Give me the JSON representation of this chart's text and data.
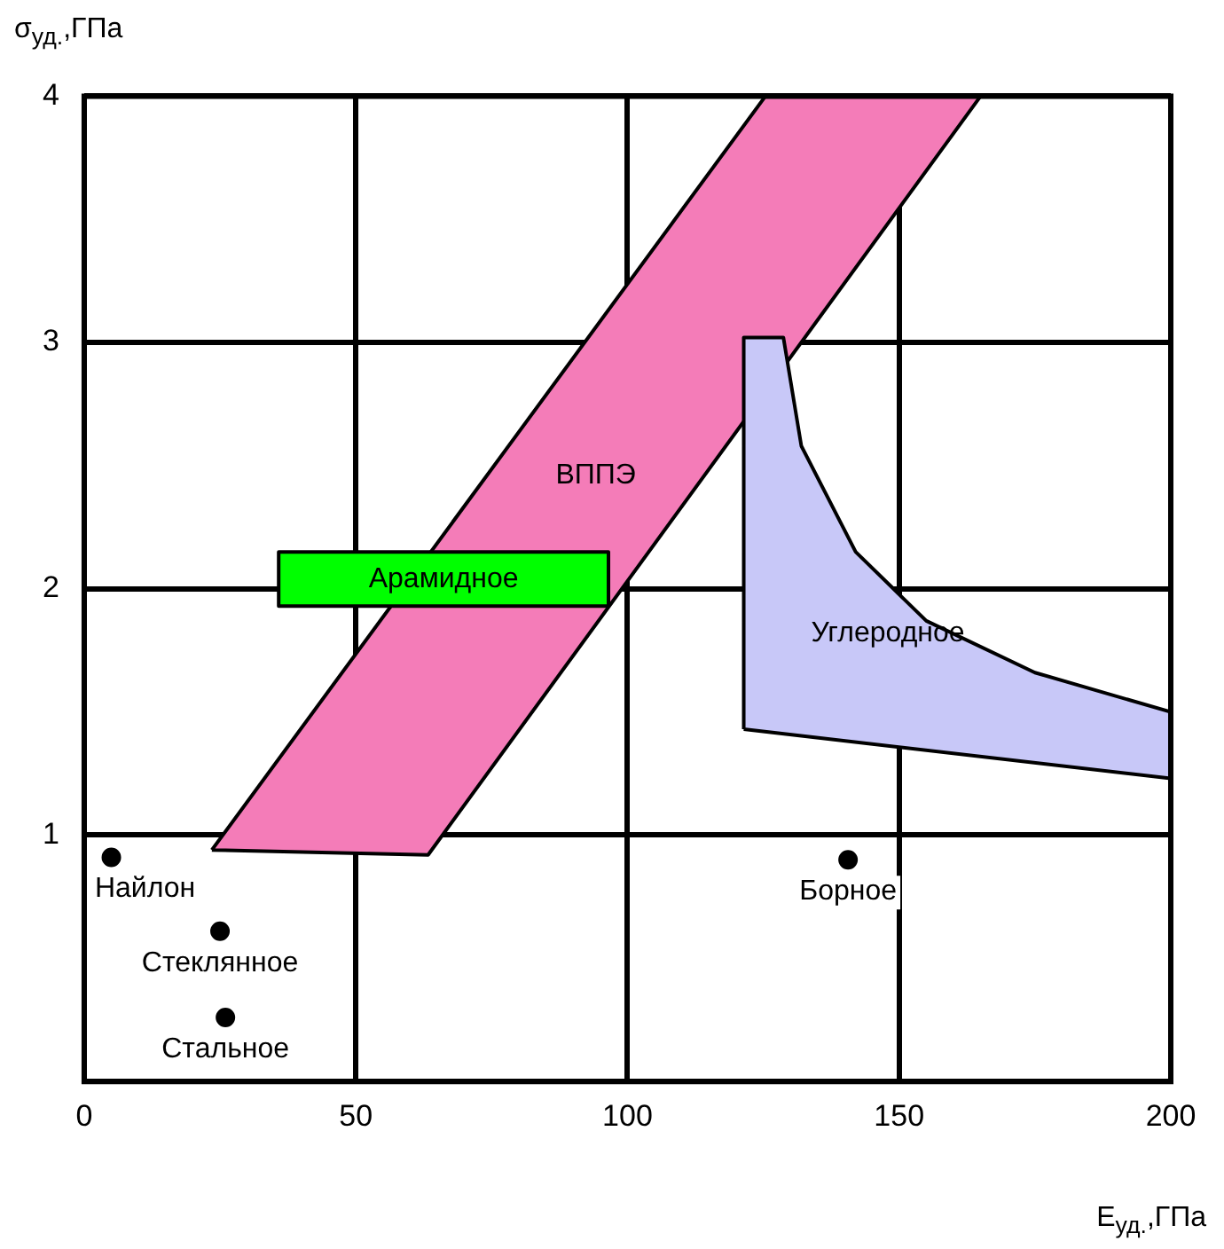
{
  "chart_data": {
    "type": "scatter",
    "xlabel": "E$_{уд.}$,ГПа",
    "ylabel": "σ$_{уд.}$,ГПа",
    "xlim": [
      0,
      200
    ],
    "ylim": [
      0,
      4
    ],
    "xticks": [
      0,
      50,
      100,
      150,
      200
    ],
    "yticks": [
      {
        "value": 0,
        "label": null
      },
      1,
      2,
      3,
      4
    ],
    "grid": true,
    "legend": false,
    "series": [
      {
        "name": "ВППЭ",
        "type": "area",
        "color": "#f47cb8",
        "x": [
          23.5,
          63.3,
          165,
          125.4,
          23.5
        ],
        "values": [
          0.94,
          0.92,
          4,
          4,
          0.94
        ]
      },
      {
        "name": "Арамидное",
        "type": "area",
        "color": "#00ff00",
        "x": [
          35.8,
          96.5,
          96.5,
          35.8,
          35.8
        ],
        "values": [
          1.93,
          1.93,
          2.15,
          2.15,
          1.93
        ]
      },
      {
        "name": "Углеродное",
        "type": "area",
        "color": "#c8c8f8",
        "x": [
          121.4,
          121.4,
          128.7,
          132,
          142,
          155,
          175,
          200,
          200,
          121.4
        ],
        "values": [
          1.43,
          3.02,
          3.02,
          2.58,
          2.15,
          1.87,
          1.66,
          1.5,
          1.23,
          1.43
        ]
      },
      {
        "name": "Найлон",
        "marker": "circle",
        "color": "#000000",
        "x": [
          5
        ],
        "values": [
          0.91
        ]
      },
      {
        "name": "Стеклянное",
        "marker": "circle",
        "color": "#000000",
        "x": [
          25
        ],
        "values": [
          0.61
        ]
      },
      {
        "name": "Стальное",
        "marker": "circle",
        "color": "#000000",
        "x": [
          26
        ],
        "values": [
          0.26
        ]
      },
      {
        "name": "Борное",
        "marker": "circle",
        "color": "#000000",
        "x": [
          140.6
        ],
        "values": [
          0.9
        ]
      }
    ]
  }
}
